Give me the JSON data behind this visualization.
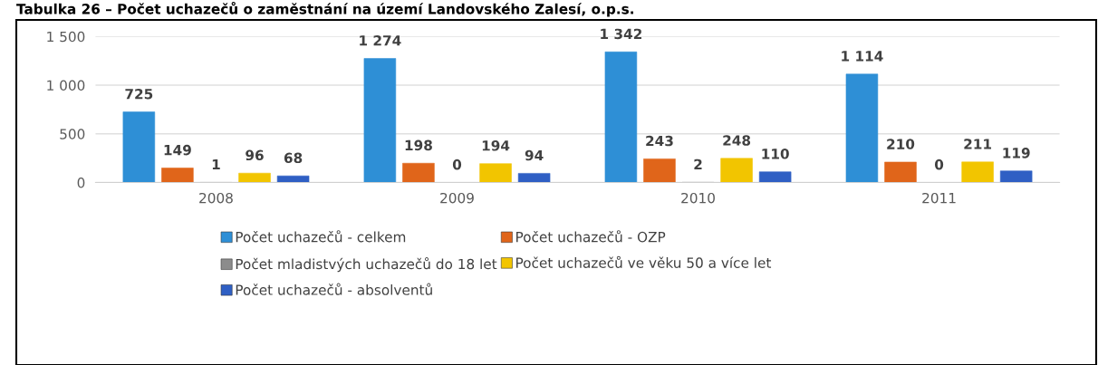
{
  "chart_data": {
    "type": "bar",
    "title": "Tabulka 26 – Počet uchazečů o zaměstnání na území Landovského Zalesí, o.p.s.",
    "categories": [
      "2008",
      "2009",
      "2010",
      "2011"
    ],
    "series": [
      {
        "name": "Počet uchazečů - celkem",
        "color": "#2e8fd6",
        "values": [
          725,
          1274,
          1342,
          1114
        ]
      },
      {
        "name": "Počet uchazečů - OZP",
        "color": "#e0651a",
        "values": [
          149,
          198,
          243,
          210
        ]
      },
      {
        "name": "Počet mladistvých uchazečů do 18 let",
        "color": "#8c8c8c",
        "values": [
          1,
          0,
          2,
          0
        ]
      },
      {
        "name": "Počet uchazečů ve věku 50 a více let",
        "color": "#f2c500",
        "values": [
          96,
          194,
          248,
          211
        ]
      },
      {
        "name": "Počet uchazečů - absolventů",
        "color": "#2f5fc4",
        "values": [
          68,
          94,
          110,
          119
        ]
      }
    ],
    "ylim": [
      0,
      1500
    ],
    "yticks": [
      {
        "value": 0,
        "label": "0"
      },
      {
        "value": 500,
        "label": "500"
      },
      {
        "value": 1000,
        "label": "1 000"
      },
      {
        "value": 1500,
        "label": "1 500"
      }
    ],
    "grid": "y",
    "legend": "bottom",
    "data_labels": true
  }
}
